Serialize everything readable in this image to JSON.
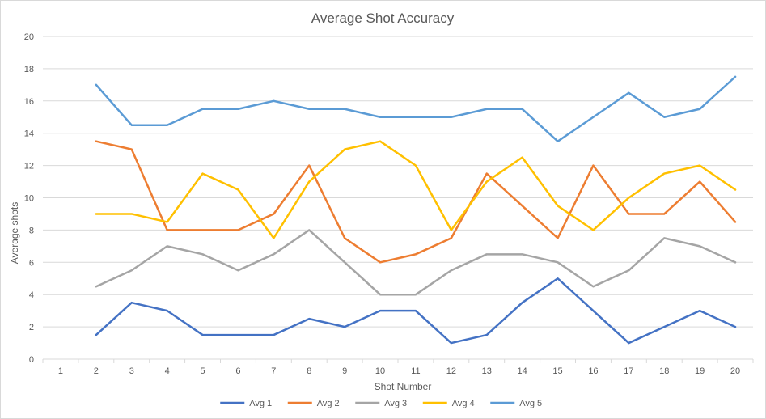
{
  "chart_data": {
    "type": "line",
    "title": "Average Shot Accuracy",
    "xlabel": "Shot Number",
    "ylabel": "Average shots",
    "categories": [
      "1",
      "2",
      "3",
      "4",
      "5",
      "6",
      "7",
      "8",
      "9",
      "10",
      "11",
      "12",
      "13",
      "14",
      "15",
      "16",
      "17",
      "18",
      "19",
      "20"
    ],
    "ylim": [
      0,
      20
    ],
    "yticks": [
      "0",
      "2",
      "4",
      "6",
      "8",
      "10",
      "12",
      "14",
      "16",
      "18",
      "20"
    ],
    "grid": true,
    "legend": "bottom",
    "series": [
      {
        "name": "Avg 1",
        "color": "#4472C4",
        "values": [
          null,
          1.5,
          3.5,
          3,
          1.5,
          1.5,
          1.5,
          2.5,
          2,
          3,
          3,
          1,
          1.5,
          3.5,
          5,
          3,
          1,
          2,
          3,
          2
        ]
      },
      {
        "name": "Avg 2",
        "color": "#ED7D31",
        "values": [
          null,
          13.5,
          13,
          8,
          8,
          8,
          9,
          12,
          7.5,
          6,
          6.5,
          7.5,
          11.5,
          9.5,
          7.5,
          12,
          9,
          9,
          11,
          8.5
        ]
      },
      {
        "name": "Avg 3",
        "color": "#A5A5A5",
        "values": [
          null,
          4.5,
          5.5,
          7,
          6.5,
          5.5,
          6.5,
          8,
          6,
          4,
          4,
          5.5,
          6.5,
          6.5,
          6,
          4.5,
          5.5,
          7.5,
          7,
          6
        ]
      },
      {
        "name": "Avg 4",
        "color": "#FFC000",
        "values": [
          null,
          9,
          9,
          8.5,
          11.5,
          10.5,
          7.5,
          11,
          13,
          13.5,
          12,
          8,
          11,
          12.5,
          9.5,
          8,
          10,
          11.5,
          12,
          10.5
        ]
      },
      {
        "name": "Avg 5",
        "color": "#5B9BD5",
        "values": [
          null,
          17,
          14.5,
          14.5,
          15.5,
          15.5,
          16,
          15.5,
          15.5,
          15,
          15,
          15,
          15.5,
          15.5,
          13.5,
          15,
          16.5,
          15,
          15.5,
          17.5
        ]
      }
    ]
  }
}
